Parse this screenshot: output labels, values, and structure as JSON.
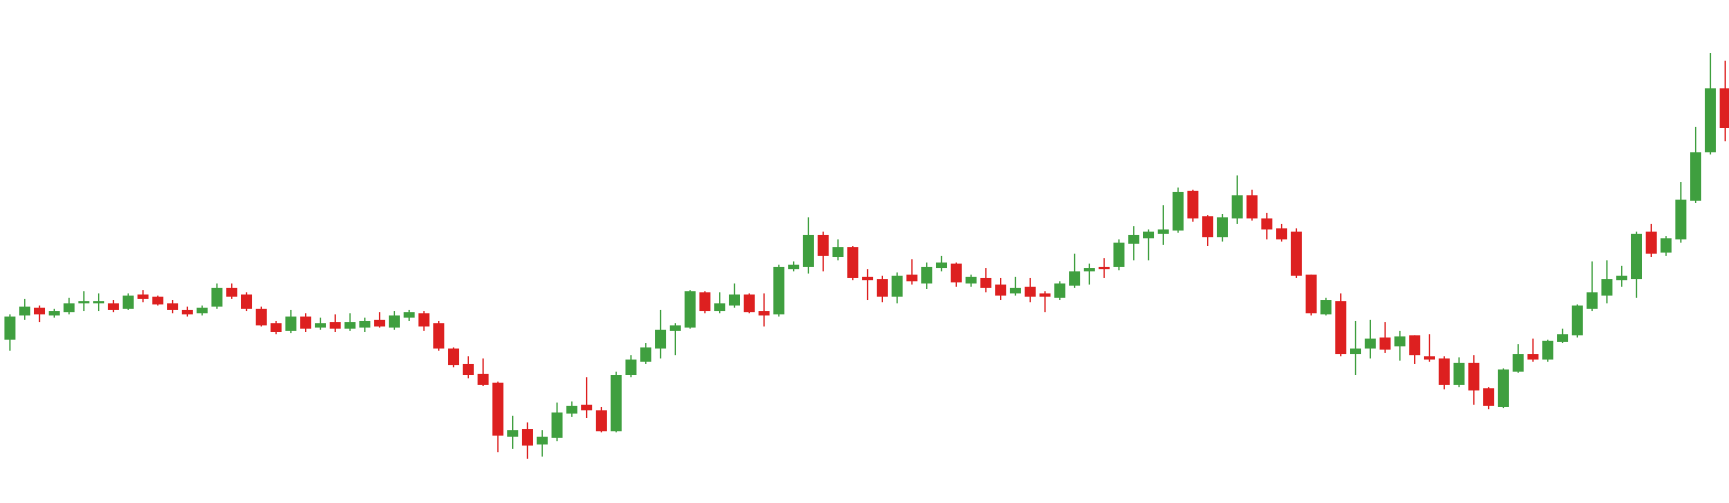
{
  "chart_data": {
    "type": "candlestick",
    "up_color": "#3f9f3f",
    "down_color": "#dd2020",
    "ylim": [
      4,
      460
    ],
    "open": [
      152,
      174,
      181,
      174,
      177,
      185,
      185,
      185,
      180,
      193,
      191,
      185,
      179,
      176,
      182,
      199,
      193,
      180,
      167,
      160,
      173,
      163,
      168,
      162,
      163,
      170,
      163,
      172,
      176,
      167,
      144,
      130,
      121,
      113,
      64,
      71,
      57,
      63,
      85,
      93,
      88,
      69,
      120,
      132,
      144,
      160,
      163,
      195,
      178,
      183,
      193,
      178,
      175,
      216,
      218,
      247,
      227,
      236,
      209,
      207,
      191,
      211,
      203,
      217,
      221,
      203,
      208,
      202,
      194,
      200,
      194,
      190,
      201,
      214,
      218,
      218,
      239,
      244,
      248,
      251,
      287,
      264,
      245,
      262,
      283,
      262,
      253,
      250,
      211,
      175,
      187,
      139,
      144,
      154,
      146,
      156,
      137,
      135,
      111,
      131,
      108,
      91,
      123,
      139,
      134,
      150,
      156,
      180,
      192,
      206,
      207,
      250,
      231,
      243,
      278,
      322,
      380
    ],
    "high": [
      175,
      189,
      183,
      180,
      190,
      196,
      194,
      188,
      194,
      197,
      192,
      188,
      182,
      183,
      203,
      203,
      195,
      182,
      169,
      179,
      176,
      172,
      175,
      176,
      172,
      177,
      178,
      179,
      178,
      169,
      145,
      137,
      135,
      114,
      83,
      77,
      70,
      95,
      96,
      118,
      91,
      123,
      138,
      149,
      179,
      167,
      197,
      196,
      195,
      203,
      194,
      194,
      220,
      223,
      263,
      250,
      243,
      237,
      216,
      210,
      213,
      225,
      222,
      228,
      222,
      211,
      217,
      208,
      209,
      208,
      196,
      205,
      230,
      221,
      226,
      243,
      255,
      252,
      274,
      290,
      288,
      265,
      266,
      301,
      288,
      267,
      257,
      253,
      211,
      190,
      194,
      169,
      170,
      168,
      160,
      156,
      157,
      137,
      136,
      138,
      109,
      126,
      148,
      153,
      152,
      162,
      184,
      223,
      224,
      219,
      250,
      257,
      246,
      295,
      345,
      412,
      405
    ],
    "low": [
      142,
      170,
      168,
      172,
      175,
      178,
      178,
      177,
      179,
      186,
      183,
      176,
      173,
      174,
      180,
      189,
      178,
      164,
      157,
      158,
      159,
      161,
      159,
      160,
      159,
      163,
      161,
      169,
      160,
      142,
      127,
      117,
      110,
      50,
      53,
      44,
      46,
      60,
      82,
      81,
      68,
      68,
      118,
      130,
      135,
      138,
      162,
      176,
      176,
      181,
      176,
      164,
      173,
      214,
      212,
      214,
      224,
      206,
      188,
      186,
      185,
      202,
      198,
      214,
      200,
      200,
      195,
      188,
      192,
      186,
      177,
      188,
      199,
      202,
      208,
      215,
      224,
      224,
      238,
      249,
      259,
      237,
      241,
      257,
      260,
      243,
      241,
      208,
      174,
      174,
      137,
      120,
      135,
      140,
      133,
      130,
      132,
      107,
      109,
      93,
      89,
      90,
      122,
      132,
      132,
      149,
      154,
      178,
      185,
      200,
      190,
      227,
      228,
      240,
      276,
      320,
      332
    ],
    "close": [
      173,
      182,
      175,
      178,
      185,
      187,
      187,
      179,
      192,
      189,
      184,
      179,
      175,
      181,
      199,
      191,
      180,
      165,
      159,
      173,
      162,
      167,
      162,
      168,
      169,
      164,
      174,
      177,
      164,
      144,
      129,
      120,
      111,
      65,
      70,
      56,
      64,
      86,
      92,
      88,
      69,
      120,
      134,
      145,
      161,
      165,
      196,
      178,
      185,
      193,
      177,
      174,
      218,
      220,
      247,
      228,
      236,
      208,
      206,
      191,
      210,
      205,
      218,
      222,
      204,
      209,
      199,
      192,
      199,
      191,
      191,
      203,
      214,
      217,
      216,
      240,
      247,
      250,
      252,
      286,
      262,
      245,
      263,
      283,
      262,
      252,
      243,
      210,
      176,
      188,
      139,
      144,
      153,
      143,
      155,
      138,
      134,
      111,
      131,
      106,
      92,
      125,
      139,
      134,
      151,
      157,
      183,
      195,
      207,
      210,
      248,
      230,
      244,
      279,
      322,
      380,
      344
    ]
  }
}
